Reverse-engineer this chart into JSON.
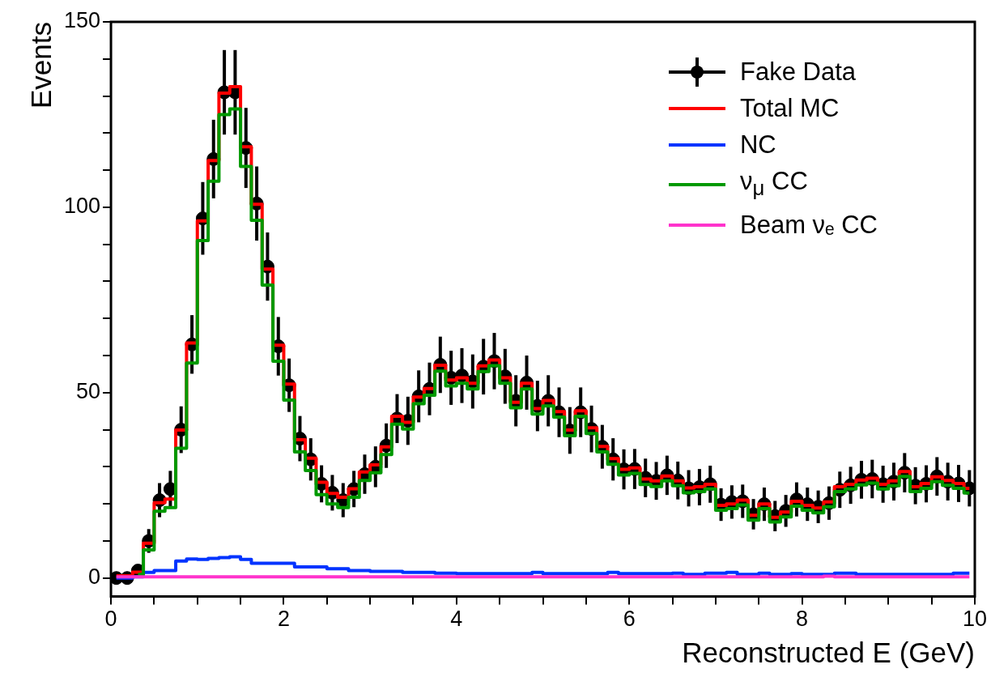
{
  "chart_data": {
    "type": "step",
    "xlabel": "Reconstructed E (GeV)",
    "ylabel": "Events",
    "x": [
      0.0625,
      0.1875,
      0.3125,
      0.4375,
      0.5625,
      0.6875,
      0.8125,
      0.9375,
      1.0625,
      1.1875,
      1.3125,
      1.4375,
      1.5625,
      1.6875,
      1.8125,
      1.9375,
      2.0625,
      2.1875,
      2.3125,
      2.4375,
      2.5625,
      2.6875,
      2.8125,
      2.9375,
      3.0625,
      3.1875,
      3.3125,
      3.4375,
      3.5625,
      3.6875,
      3.8125,
      3.9375,
      4.0625,
      4.1875,
      4.3125,
      4.4375,
      4.5625,
      4.6875,
      4.8125,
      4.9375,
      5.0625,
      5.1875,
      5.3125,
      5.4375,
      5.5625,
      5.6875,
      5.8125,
      5.9375,
      6.0625,
      6.1875,
      6.3125,
      6.4375,
      6.5625,
      6.6875,
      6.8125,
      6.9375,
      7.0625,
      7.1875,
      7.3125,
      7.4375,
      7.5625,
      7.6875,
      7.8125,
      7.9375,
      8.0625,
      8.1875,
      8.3125,
      8.4375,
      8.5625,
      8.6875,
      8.8125,
      8.9375,
      9.0625,
      9.1875,
      9.3125,
      9.4375,
      9.5625,
      9.6875,
      9.8125,
      9.9375
    ],
    "xlim": [
      0,
      10
    ],
    "xticks": [
      0,
      {
        "value": 0.5,
        "label": null
      },
      2,
      {
        "value": 1,
        "label": null
      },
      {
        "value": 1.5,
        "label": null
      },
      {
        "value": 2.5,
        "label": null
      },
      {
        "value": 3,
        "label": null
      },
      {
        "value": 3.5,
        "label": null
      },
      4,
      {
        "value": 4.5,
        "label": null
      },
      {
        "value": 5,
        "label": null
      },
      {
        "value": 5.5,
        "label": null
      },
      6,
      {
        "value": 6.5,
        "label": null
      },
      {
        "value": 7,
        "label": null
      },
      {
        "value": 7.5,
        "label": null
      },
      8,
      {
        "value": 8.5,
        "label": null
      },
      {
        "value": 9,
        "label": null
      },
      {
        "value": 9.5,
        "label": null
      },
      10
    ],
    "ylim": [
      -5,
      150
    ],
    "yticks": [
      0,
      {
        "value": 10,
        "label": null
      },
      {
        "value": 20,
        "label": null
      },
      {
        "value": 30,
        "label": null
      },
      {
        "value": 40,
        "label": null
      },
      50,
      {
        "value": 60,
        "label": null
      },
      {
        "value": 70,
        "label": null
      },
      {
        "value": 80,
        "label": null
      },
      {
        "value": 90,
        "label": null
      },
      100,
      {
        "value": 110,
        "label": null
      },
      {
        "value": 120,
        "label": null
      },
      {
        "value": 130,
        "label": null
      },
      {
        "value": 140,
        "label": null
      },
      150
    ],
    "grid": false,
    "legend": "top right",
    "series": [
      {
        "name": "Fake Data",
        "type": "scatter",
        "color": "#000000",
        "marker": "circle",
        "values": [
          0,
          0,
          2,
          10,
          21,
          24,
          40,
          63,
          97,
          113,
          131,
          131,
          116,
          101,
          84,
          62.5,
          52,
          37.6,
          32,
          25.4,
          23,
          21,
          24,
          28,
          30,
          35.7,
          43,
          42.4,
          49,
          51,
          57.5,
          54,
          54.6,
          53,
          57,
          58.5,
          54.4,
          47.8,
          52.7,
          46.4,
          47.8,
          44.7,
          39.8,
          44.7,
          40.2,
          35.4,
          32,
          29.3,
          29.4,
          27,
          26.2,
          27.7,
          26.3,
          24.2,
          24.5,
          25.3,
          19.8,
          20.5,
          20.7,
          17.2,
          19.9,
          16.7,
          18.1,
          21.2,
          19.9,
          19.2,
          20.2,
          23.8,
          25,
          26.5,
          26.7,
          25.3,
          26,
          28.4,
          24.9,
          25.4,
          27.4,
          26,
          25.5,
          24.2
        ],
        "errors": [
          null,
          null,
          1.4,
          3.2,
          4.6,
          4.9,
          6.3,
          7.9,
          9.8,
          10.6,
          11.4,
          11.4,
          10.8,
          10.0,
          9.2,
          7.9,
          7.2,
          6.1,
          5.7,
          5.0,
          4.8,
          4.6,
          4.9,
          5.3,
          5.5,
          6.0,
          6.6,
          6.5,
          7.0,
          7.1,
          7.6,
          7.3,
          7.4,
          7.3,
          7.5,
          7.6,
          7.4,
          6.9,
          7.3,
          6.8,
          6.9,
          6.7,
          6.3,
          6.7,
          6.3,
          5.9,
          5.7,
          5.4,
          5.4,
          5.2,
          5.1,
          5.3,
          5.1,
          4.9,
          4.9,
          5.0,
          4.4,
          4.5,
          4.5,
          4.1,
          4.5,
          4.1,
          4.3,
          4.6,
          4.5,
          4.4,
          4.5,
          4.9,
          5.0,
          5.1,
          5.2,
          5.0,
          5.1,
          5.3,
          5.0,
          5.0,
          5.2,
          5.1,
          5.0,
          4.9
        ]
      },
      {
        "name": "Total MC",
        "color": "#ff0000",
        "values": [
          0.6,
          0.6,
          1.6,
          9.4,
          20.3,
          21.3,
          39.9,
          63.4,
          96.3,
          112.6,
          130.8,
          132.5,
          116.3,
          100.8,
          83.3,
          62.8,
          52.3,
          37.3,
          32.3,
          25.8,
          22.8,
          21.8,
          24.1,
          28.6,
          30.5,
          35.4,
          43.6,
          42,
          48.8,
          51.1,
          57.4,
          53.4,
          54,
          52.5,
          57.2,
          58.8,
          54,
          47.4,
          52.5,
          45.7,
          47.9,
          44.9,
          39.9,
          45.1,
          40.5,
          35.5,
          32.2,
          29.3,
          29.7,
          26.7,
          26.2,
          27.5,
          26.2,
          24.3,
          24.6,
          25.3,
          19.6,
          20,
          21,
          16.9,
          20,
          16.4,
          17.8,
          20.7,
          19.6,
          18.9,
          20.5,
          24.6,
          25.3,
          26.4,
          26.9,
          25.3,
          26.2,
          28.7,
          24.6,
          25.5,
          27.3,
          26.3,
          25.5,
          24.2
        ]
      },
      {
        "name": "NC",
        "color": "#0033ff",
        "values": [
          0,
          0,
          0.3,
          1.5,
          2,
          2,
          4.6,
          5.1,
          5,
          5.3,
          5.5,
          5.7,
          5,
          4,
          4,
          4,
          4,
          3,
          3,
          3,
          2.5,
          2.5,
          2,
          2,
          1.8,
          1.8,
          1.8,
          1.5,
          1.5,
          1.5,
          1.3,
          1.3,
          1.2,
          1.2,
          1.2,
          1.2,
          1.2,
          1.2,
          1.2,
          1.5,
          1.2,
          1.2,
          1.2,
          1.2,
          1.2,
          1.2,
          1.5,
          1.2,
          1.2,
          1.2,
          1.2,
          1.2,
          1.3,
          1,
          1,
          1.3,
          1.3,
          1.5,
          1,
          1,
          1.3,
          1,
          1,
          1.2,
          1,
          1,
          1,
          1.3,
          1.3,
          1,
          1,
          1,
          1,
          1,
          1,
          1,
          1,
          1,
          1.3,
          1.3
        ]
      },
      {
        "name": "ν$_{μ}$ CC",
        "color": "#009900",
        "values": [
          null,
          null,
          1,
          7.6,
          18,
          19,
          35,
          58,
          91,
          107,
          125,
          126.5,
          111,
          96.5,
          79,
          58.5,
          48,
          34,
          29,
          22.5,
          20,
          19,
          21.8,
          26.3,
          28.4,
          33.3,
          41.5,
          40.2,
          47,
          49.3,
          55.8,
          51.8,
          52.5,
          51,
          55.7,
          57.3,
          52.5,
          45.9,
          51,
          44.2,
          46.4,
          43.4,
          38.4,
          43.6,
          39,
          34,
          30.7,
          27.8,
          28.2,
          25.2,
          24.7,
          26.2,
          24.9,
          23,
          23.3,
          24,
          18.3,
          18.7,
          19.7,
          15.6,
          18.7,
          15.1,
          16.5,
          19.4,
          18.3,
          17.6,
          19.2,
          23.3,
          24,
          25.1,
          25.6,
          24,
          24.9,
          27.4,
          23.3,
          24.2,
          26,
          25,
          24.2,
          22.9
        ]
      },
      {
        "name": "Beam νₑ CC",
        "color": "#ff33cc",
        "values": [
          0.3,
          0.3,
          0.3,
          0.3,
          0.3,
          0.3,
          0.3,
          0.3,
          0.3,
          0.3,
          0.3,
          0.3,
          0.3,
          0.3,
          0.3,
          0.3,
          0.3,
          0.3,
          0.3,
          0.3,
          0.3,
          0.3,
          0.3,
          0.3,
          0.3,
          0.3,
          0.3,
          0.3,
          0.3,
          0.3,
          0.3,
          0.3,
          0.3,
          0.3,
          0.3,
          0.3,
          0.3,
          0.3,
          0.3,
          0.3,
          0.3,
          0.3,
          0.3,
          0.3,
          0.3,
          0.3,
          0.3,
          0.3,
          0.3,
          0.3,
          0.3,
          0.3,
          0.3,
          0.3,
          0.3,
          0.3,
          0.3,
          0.3,
          0.3,
          0.3,
          0.3,
          0.3,
          0.3,
          0.3,
          0.3,
          0.3,
          0.5,
          0.3,
          0.3,
          0.3,
          0.3,
          0.3,
          0.3,
          0.3,
          0.3,
          0.3,
          0.3,
          0.3,
          0.3,
          0.3
        ]
      }
    ]
  }
}
